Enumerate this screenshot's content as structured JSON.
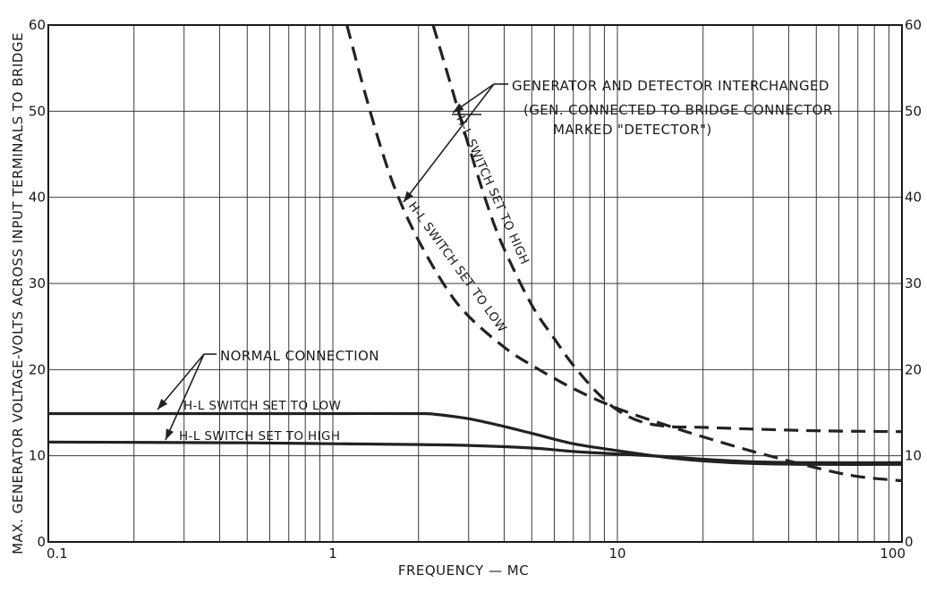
{
  "chart_data": {
    "type": "line",
    "title": "",
    "xlabel": "FREQUENCY — MC",
    "ylabel": "MAX. GENERATOR VOLTAGE-VOLTS ACROSS INPUT TERMINALS TO BRIDGE",
    "x_scale": "log",
    "xlim": [
      0.1,
      100
    ],
    "ylim": [
      0,
      60
    ],
    "grid": true,
    "x_tick_labels": [
      {
        "value": 0.1,
        "label": "0.1"
      },
      {
        "value": 1,
        "label": "1"
      },
      {
        "value": 10,
        "label": "10"
      },
      {
        "value": 100,
        "label": "100"
      }
    ],
    "y_tick_labels": [
      {
        "value": 0,
        "label": "0"
      },
      {
        "value": 10,
        "label": "10"
      },
      {
        "value": 20,
        "label": "20"
      },
      {
        "value": 30,
        "label": "30"
      },
      {
        "value": 40,
        "label": "40"
      },
      {
        "value": 50,
        "label": "50"
      },
      {
        "value": 60,
        "label": "60"
      }
    ],
    "series": [
      {
        "name": "H-L SWITCH SET TO LOW",
        "group": "NORMAL CONNECTION",
        "style": "solid",
        "x": [
          0.1,
          0.5,
          1,
          2,
          2.3,
          3,
          4,
          5,
          7,
          10,
          15,
          20,
          30,
          50,
          100
        ],
        "y": [
          14.9,
          14.9,
          14.9,
          14.9,
          14.8,
          14.3,
          13.4,
          12.6,
          11.4,
          10.6,
          9.8,
          9.4,
          9.1,
          9.0,
          9.0
        ]
      },
      {
        "name": "H-L SWITCH SET TO HIGH",
        "group": "NORMAL CONNECTION",
        "style": "solid",
        "x": [
          0.1,
          0.5,
          1,
          2,
          3,
          5,
          7,
          10,
          15,
          20,
          30,
          50,
          100
        ],
        "y": [
          11.6,
          11.5,
          11.4,
          11.3,
          11.2,
          10.9,
          10.5,
          10.2,
          9.9,
          9.6,
          9.3,
          9.2,
          9.2
        ]
      },
      {
        "name": "H-L SWITCH SET TO LOW",
        "group": "GENERATOR AND DETECTOR INTERCHANGED",
        "style": "dashed",
        "x": [
          1.12,
          1.3,
          1.5,
          1.7,
          2,
          2.5,
          3,
          4,
          5,
          7,
          10,
          15,
          20,
          30,
          50,
          70,
          100
        ],
        "y": [
          60,
          52,
          45,
          40,
          35,
          29.5,
          26.2,
          22.6,
          20.5,
          17.8,
          15.5,
          13.5,
          12.2,
          10.5,
          8.6,
          7.6,
          7.1
        ]
      },
      {
        "name": "H-L SWITCH SET TO HIGH",
        "group": "GENERATOR AND DETECTOR INTERCHANGED",
        "style": "dashed",
        "x": [
          2.25,
          2.6,
          3,
          3.5,
          4,
          5,
          6,
          7,
          8.5,
          10,
          12,
          15,
          20,
          30,
          50,
          100
        ],
        "y": [
          60,
          53,
          46,
          39,
          34,
          27.5,
          23.6,
          20.5,
          17.3,
          15.3,
          14.0,
          13.4,
          13.3,
          13.1,
          12.9,
          12.8
        ]
      }
    ],
    "annotations": {
      "interchanged_title": "GENERATOR AND DETECTOR INTERCHANGED",
      "interchanged_note_line1": "(GEN. CONNECTED TO BRIDGE CONNECTOR",
      "interchanged_note_line2": "MARKED \"DETECTOR\")",
      "normal_title": "NORMAL CONNECTION",
      "normal_low_label": "H-L SWITCH SET TO LOW",
      "normal_high_label": "H-L SWITCH SET TO HIGH",
      "dashed_low_label": "H-L SWITCH SET TO LOW",
      "dashed_high_label": "H-L SWITCH SET TO HIGH"
    },
    "colors": {
      "ink": "#222222",
      "background": "#ffffff"
    }
  }
}
